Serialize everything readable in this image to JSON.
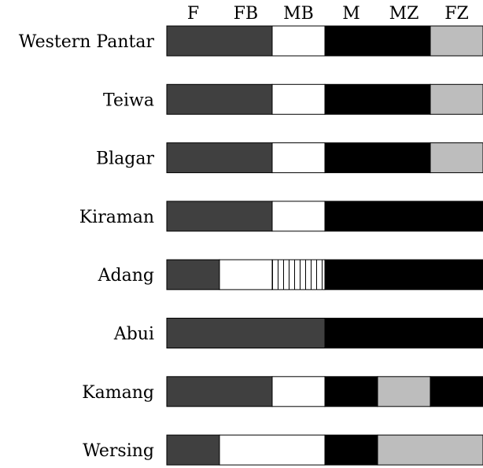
{
  "columns": [
    "F",
    "FB",
    "MB",
    "M",
    "MZ",
    "FZ"
  ],
  "colors": {
    "dark-gray": "#404040",
    "white": "#ffffff",
    "black": "#000000",
    "light-gray": "#bdbdbd",
    "stripes": "#ffffff"
  },
  "rows": [
    {
      "label": "Western Pantar",
      "segments": [
        {
          "from": 0,
          "to": 2,
          "fill": "dark-gray"
        },
        {
          "from": 2,
          "to": 3,
          "fill": "white"
        },
        {
          "from": 3,
          "to": 5,
          "fill": "black"
        },
        {
          "from": 5,
          "to": 6,
          "fill": "light-gray"
        }
      ]
    },
    {
      "label": "Teiwa",
      "segments": [
        {
          "from": 0,
          "to": 2,
          "fill": "dark-gray"
        },
        {
          "from": 2,
          "to": 3,
          "fill": "white"
        },
        {
          "from": 3,
          "to": 5,
          "fill": "black"
        },
        {
          "from": 5,
          "to": 6,
          "fill": "light-gray"
        }
      ]
    },
    {
      "label": "Blagar",
      "segments": [
        {
          "from": 0,
          "to": 2,
          "fill": "dark-gray"
        },
        {
          "from": 2,
          "to": 3,
          "fill": "white"
        },
        {
          "from": 3,
          "to": 5,
          "fill": "black"
        },
        {
          "from": 5,
          "to": 6,
          "fill": "light-gray"
        }
      ]
    },
    {
      "label": "Kiraman",
      "segments": [
        {
          "from": 0,
          "to": 2,
          "fill": "dark-gray"
        },
        {
          "from": 2,
          "to": 3,
          "fill": "white"
        },
        {
          "from": 3,
          "to": 6,
          "fill": "black"
        }
      ]
    },
    {
      "label": "Adang",
      "segments": [
        {
          "from": 0,
          "to": 1,
          "fill": "dark-gray"
        },
        {
          "from": 1,
          "to": 2,
          "fill": "white"
        },
        {
          "from": 2,
          "to": 3,
          "fill": "stripes"
        },
        {
          "from": 3,
          "to": 6,
          "fill": "black"
        }
      ]
    },
    {
      "label": "Abui",
      "segments": [
        {
          "from": 0,
          "to": 3,
          "fill": "dark-gray"
        },
        {
          "from": 3,
          "to": 6,
          "fill": "black"
        }
      ]
    },
    {
      "label": "Kamang",
      "segments": [
        {
          "from": 0,
          "to": 2,
          "fill": "dark-gray"
        },
        {
          "from": 2,
          "to": 3,
          "fill": "white"
        },
        {
          "from": 3,
          "to": 4,
          "fill": "black"
        },
        {
          "from": 4,
          "to": 5,
          "fill": "light-gray"
        },
        {
          "from": 5,
          "to": 6,
          "fill": "black"
        }
      ]
    },
    {
      "label": "Wersing",
      "segments": [
        {
          "from": 0,
          "to": 1,
          "fill": "dark-gray"
        },
        {
          "from": 1,
          "to": 3,
          "fill": "white"
        },
        {
          "from": 3,
          "to": 4,
          "fill": "black"
        },
        {
          "from": 4,
          "to": 6,
          "fill": "light-gray"
        }
      ]
    }
  ]
}
